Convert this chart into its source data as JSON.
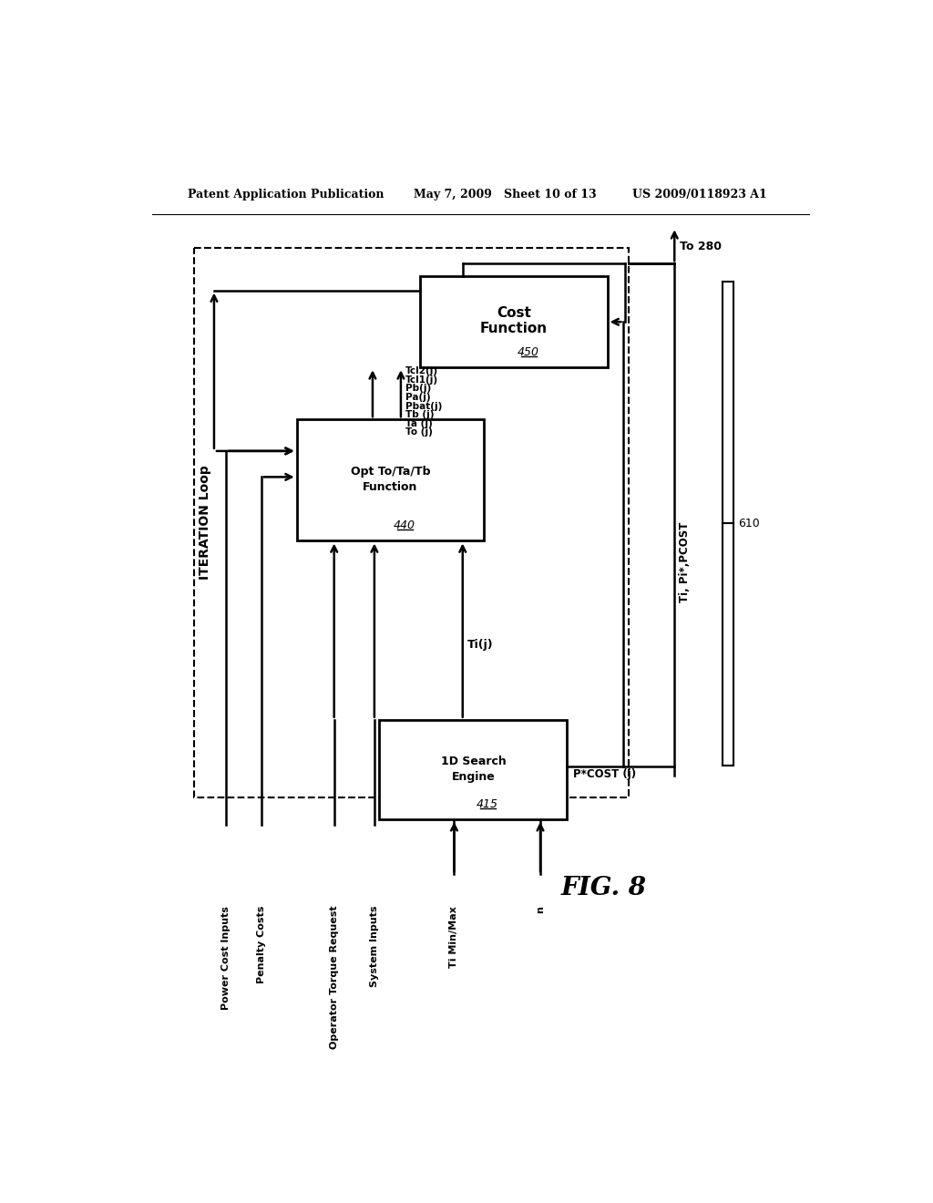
{
  "header_left": "Patent Application Publication",
  "header_center": "May 7, 2009   Sheet 10 of 13",
  "header_right": "US 2009/0118923 A1",
  "fig_label": "FIG. 8",
  "iteration_loop_label": "ITERATION Loop",
  "box_450_label1": "Cost",
  "box_450_label2": "Function",
  "box_450_num": "450",
  "box_440_label1": "Opt To/Ta/Tb",
  "box_440_label2": "Function",
  "box_440_num": "440",
  "box_415_label1": "1D Search",
  "box_415_label2": "Engine",
  "box_415_num": "415",
  "signals_440_450": [
    "To (j)",
    "Ta (j)",
    "Tb (j)",
    "Pbat(j)",
    "Pa(j)",
    "Pb(j)",
    "Tcl1(j)",
    "Tcl2(j)"
  ],
  "signal_ti_j": "Ti(j)",
  "signal_pcost": "P*COST (j)",
  "signal_output": "Ti, Pi*,PCOST",
  "to_280": "To 280",
  "brace_label": "610",
  "inputs": [
    "Power Cost Inputs",
    "Penalty Costs",
    "Operator Torque Request",
    "System Inputs",
    "Ti Min/Max",
    "n"
  ],
  "background_color": "#ffffff",
  "line_color": "#000000"
}
